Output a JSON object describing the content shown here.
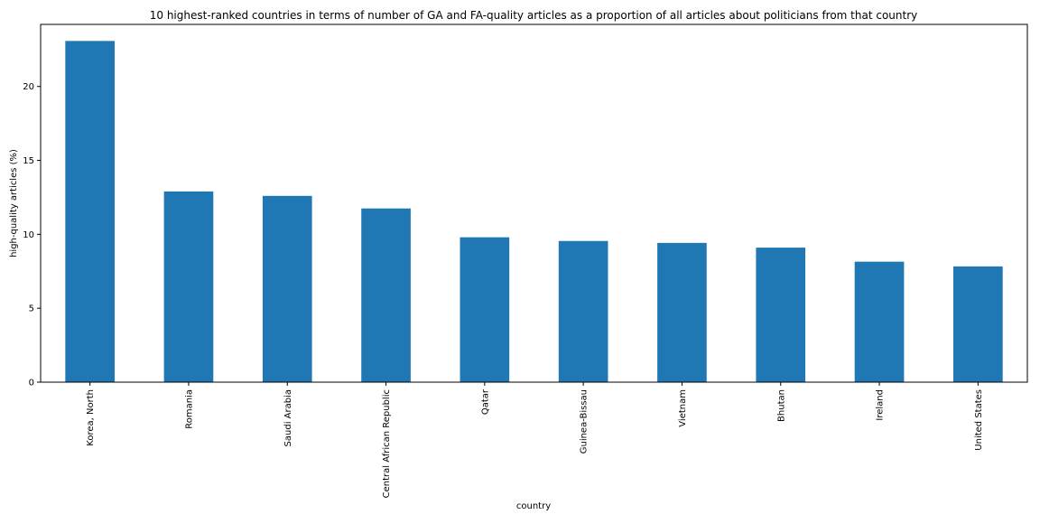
{
  "chart_data": {
    "type": "bar",
    "title": "10 highest-ranked countries in terms of number of GA and FA-quality articles as a proportion of all articles about politicians from that country",
    "xlabel": "country",
    "ylabel": "high-quality articles (%)",
    "categories": [
      "Korea, North",
      "Romania",
      "Saudi Arabia",
      "Central African Republic",
      "Qatar",
      "Guinea-Bissau",
      "Vietnam",
      "Bhutan",
      "Ireland",
      "United States"
    ],
    "values": [
      23.08,
      12.9,
      12.6,
      11.75,
      9.8,
      9.55,
      9.42,
      9.1,
      8.15,
      7.83
    ],
    "ylim": [
      0,
      24.2
    ],
    "yticks": [
      0,
      5,
      10,
      15,
      20
    ],
    "grid": false,
    "legend": "none",
    "colors": {
      "bar": "#1f77b4",
      "axis": "#000000",
      "background": "#ffffff"
    }
  }
}
